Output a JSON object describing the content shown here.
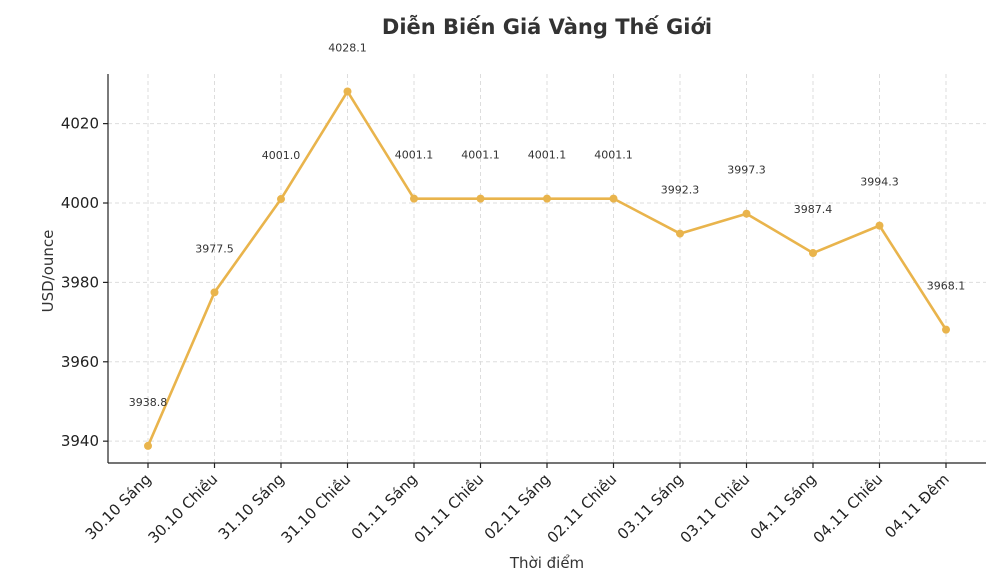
{
  "chart_data": {
    "type": "line",
    "title": "Diễn Biến Giá Vàng Thế Giới",
    "xlabel": "Thời điểm",
    "ylabel": "USD/ounce",
    "categories": [
      "30.10 Sáng",
      "30.10 Chiều",
      "31.10 Sáng",
      "31.10 Chiều",
      "01.11 Sáng",
      "01.11 Chiều",
      "02.11 Sáng",
      "02.11 Chiều",
      "03.11 Sáng",
      "03.11 Chiều",
      "04.11 Sáng",
      "04.11 Chiều",
      "04.11 Đêm"
    ],
    "values": [
      3938.8,
      3977.5,
      4001.0,
      4028.1,
      4001.1,
      4001.1,
      4001.1,
      4001.1,
      3992.3,
      3997.3,
      3987.4,
      3994.3,
      3968.1
    ],
    "data_labels": [
      "3938.8",
      "3977.5",
      "4001.0",
      "4028.1",
      "4001.1",
      "4001.1",
      "4001.1",
      "4001.1",
      "3992.3",
      "3997.3",
      "3987.4",
      "3994.3",
      "3968.1"
    ],
    "yticks": [
      3940,
      3960,
      3980,
      4000,
      4020
    ],
    "ylim": [
      3934.5,
      4032.5
    ],
    "grid": true,
    "legend": "none",
    "line_color": "#e9b44c"
  }
}
